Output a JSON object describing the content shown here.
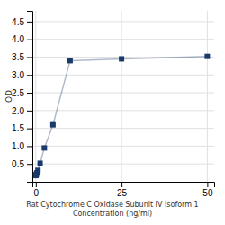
{
  "chart_data": {
    "type": "line",
    "x_label": "Rat Cytochrome C Oxidase Subunit IV Isoform 1\nConcentration (ng/ml)",
    "y_label": "OD",
    "x": [
      0,
      0.078,
      0.156,
      0.313,
      0.625,
      1.25,
      2.5,
      5,
      10,
      25,
      50
    ],
    "values": [
      0.175,
      0.19,
      0.21,
      0.25,
      0.32,
      0.52,
      0.95,
      1.6,
      3.4,
      3.45,
      3.52
    ],
    "color": "#1a3a6b",
    "marker": "square",
    "xlim": [
      -1,
      52
    ],
    "ylim": [
      0,
      4.8
    ],
    "xticks": [
      0,
      25,
      50
    ],
    "yticks": [
      0.5,
      {
        "value": 1.0,
        "label": "1.0"
      },
      1.5,
      {
        "value": 2.0,
        "label": "2.0"
      },
      2.5,
      {
        "value": 3.0,
        "label": "3.0"
      },
      3.5,
      {
        "value": 4.0,
        "label": "4.0"
      },
      4.5
    ],
    "grid": true
  }
}
